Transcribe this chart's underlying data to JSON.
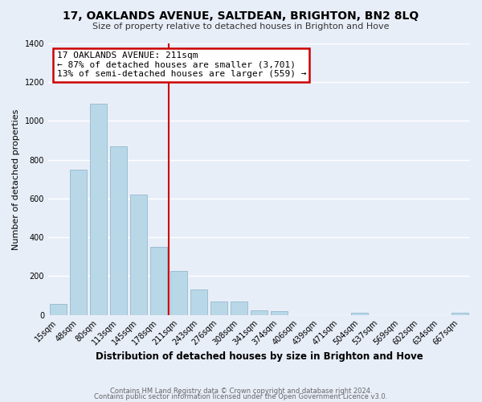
{
  "title": "17, OAKLANDS AVENUE, SALTDEAN, BRIGHTON, BN2 8LQ",
  "subtitle": "Size of property relative to detached houses in Brighton and Hove",
  "xlabel": "Distribution of detached houses by size in Brighton and Hove",
  "ylabel": "Number of detached properties",
  "footer_line1": "Contains HM Land Registry data © Crown copyright and database right 2024.",
  "footer_line2": "Contains public sector information licensed under the Open Government Licence v3.0.",
  "bar_labels": [
    "15sqm",
    "48sqm",
    "80sqm",
    "113sqm",
    "145sqm",
    "178sqm",
    "211sqm",
    "243sqm",
    "276sqm",
    "308sqm",
    "341sqm",
    "374sqm",
    "406sqm",
    "439sqm",
    "471sqm",
    "504sqm",
    "537sqm",
    "569sqm",
    "602sqm",
    "634sqm",
    "667sqm"
  ],
  "bar_values": [
    55,
    750,
    1090,
    870,
    620,
    350,
    225,
    130,
    70,
    70,
    25,
    20,
    0,
    0,
    0,
    12,
    0,
    0,
    0,
    0,
    12
  ],
  "bar_color": "#b8d8e8",
  "highlight_index": 6,
  "highlight_line_color": "#cc0000",
  "annotation_title": "17 OAKLANDS AVENUE: 211sqm",
  "annotation_line1": "← 87% of detached houses are smaller (3,701)",
  "annotation_line2": "13% of semi-detached houses are larger (559) →",
  "annotation_box_color": "#ffffff",
  "annotation_box_edge": "#cc0000",
  "ylim": [
    0,
    1400
  ],
  "yticks": [
    0,
    200,
    400,
    600,
    800,
    1000,
    1200,
    1400
  ],
  "background_color": "#e8eef8",
  "grid_color": "#ffffff"
}
